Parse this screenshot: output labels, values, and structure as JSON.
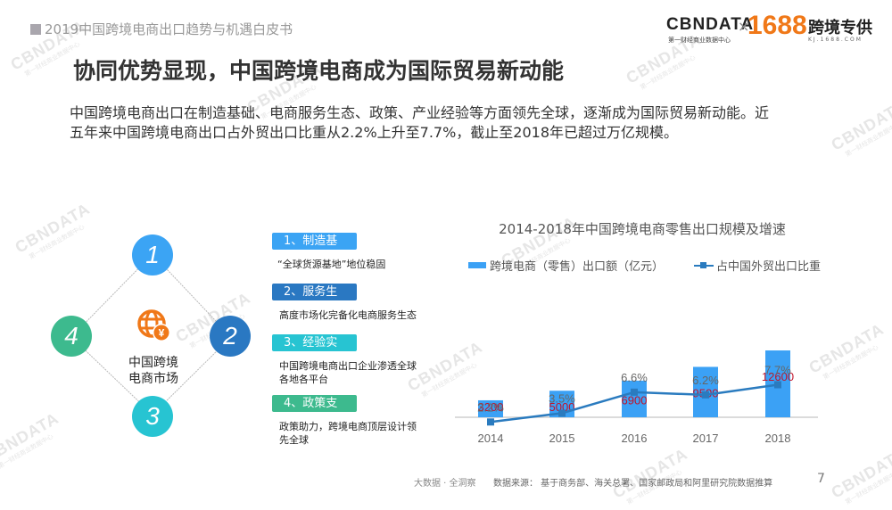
{
  "header": {
    "report_title": "2019中国跨境电商出口趋势与机遇白皮书",
    "logos": {
      "cbndata": "CBNDATA",
      "cbndata_sub": "第一财经商业数据中心",
      "times": "×",
      "brand_1688": "1688",
      "kuajing": "跨境专供",
      "kuajing_sub": "KJ.1688.COM"
    }
  },
  "page_title": "协同优势显现，中国跨境电商成为国际贸易新动能",
  "intro": {
    "line1": "中国跨境电商出口在制造基础、电商服务生态、政策、产业经验等方面领先全球，逐渐成为国际贸易新动能。近",
    "line2": "五年来中国跨境电商出口占外贸出口比重从2.2%上升至7.7%，截止至2018年已超过万亿规模。"
  },
  "diagram": {
    "center_icon": "globe-yuan-icon",
    "center_label_line1": "中国跨境",
    "center_label_line2": "电商市场",
    "nodes": [
      {
        "number": "1",
        "color": "#3ba4f4"
      },
      {
        "number": "2",
        "color": "#2a78c2"
      },
      {
        "number": "3",
        "color": "#27c4d2"
      },
      {
        "number": "4",
        "color": "#3dba8e"
      }
    ]
  },
  "factors": [
    {
      "badge": "1、制造基础",
      "color": "#3ba4f4",
      "desc": "“全球货源基地”地位稳固"
    },
    {
      "badge": "2、服务生态",
      "color": "#2a78c2",
      "desc": "高度市场化完备化电商服务生态"
    },
    {
      "badge": "3、经验实力",
      "color": "#27c4d2",
      "desc": "中国跨境电商出口企业渗透全球各地各平台"
    },
    {
      "badge": "4、政策支持",
      "color": "#3dba8e",
      "desc": "政策助力，跨境电商顶层设计领先全球"
    }
  ],
  "chart_data": {
    "type": "bar",
    "title": "2014-2018年中国跨境电商零售出口规模及增速",
    "categories": [
      "2014",
      "2015",
      "2016",
      "2017",
      "2018"
    ],
    "series": [
      {
        "name": "跨境电商（零售）出口额（亿元）",
        "type": "bar",
        "color": "#3ba1f5",
        "values": [
          3200,
          5000,
          6900,
          9500,
          12600
        ],
        "label_color": "#c0142a"
      },
      {
        "name": "占中国外贸出口比重",
        "type": "line",
        "color": "#2a7bbf",
        "values": [
          2.2,
          3.5,
          6.6,
          6.2,
          7.7
        ],
        "labels": [
          "2.2%",
          "3.5%",
          "6.6%",
          "6.2%",
          "7.7%"
        ]
      }
    ],
    "xlabel": "",
    "ylabel": "",
    "grid": false,
    "legend_position": "top"
  },
  "footer": {
    "tagline": "大数据 · 全洞察",
    "source": "数据来源：  基于商务部、海关总署、国家邮政局和阿里研究院数据推算",
    "page_number": "7"
  },
  "watermark": {
    "text": "CBNDATA",
    "sub": "第一财经商业数据中心"
  }
}
